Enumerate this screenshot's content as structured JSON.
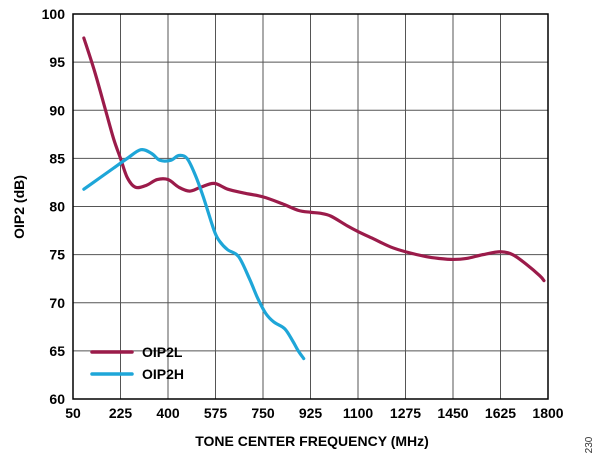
{
  "chart_data": {
    "type": "line",
    "title": "",
    "xlabel": "TONE CENTER FREQUENCY (MHz)",
    "ylabel": "OIP2 (dB)",
    "xlim": [
      50,
      1800
    ],
    "ylim": [
      60,
      100
    ],
    "x_ticks": [
      50,
      225,
      400,
      575,
      750,
      925,
      1100,
      1275,
      1450,
      1625,
      1800
    ],
    "x_tick_labels": [
      "50",
      "225",
      "400",
      "575",
      "750",
      "925",
      "1100",
      "1275",
      "1450",
      "1625",
      "1800"
    ],
    "y_ticks": [
      60,
      65,
      70,
      75,
      80,
      85,
      90,
      95,
      100
    ],
    "y_tick_labels": [
      "60",
      "65",
      "70",
      "75",
      "80",
      "85",
      "90",
      "95",
      "100"
    ],
    "grid": true,
    "legend_position": "bottom-left",
    "series": [
      {
        "name": "OIP2L",
        "color": "#9b1b4a",
        "points": [
          [
            90,
            97.5
          ],
          [
            130,
            94
          ],
          [
            170,
            90
          ],
          [
            200,
            87
          ],
          [
            225,
            85
          ],
          [
            250,
            83
          ],
          [
            280,
            82
          ],
          [
            320,
            82.2
          ],
          [
            360,
            82.8
          ],
          [
            400,
            82.8
          ],
          [
            440,
            82
          ],
          [
            480,
            81.6
          ],
          [
            520,
            82
          ],
          [
            570,
            82.4
          ],
          [
            620,
            81.8
          ],
          [
            680,
            81.4
          ],
          [
            750,
            81
          ],
          [
            820,
            80.3
          ],
          [
            880,
            79.6
          ],
          [
            925,
            79.4
          ],
          [
            960,
            79.3
          ],
          [
            1000,
            79
          ],
          [
            1060,
            78
          ],
          [
            1100,
            77.4
          ],
          [
            1160,
            76.6
          ],
          [
            1220,
            75.8
          ],
          [
            1275,
            75.3
          ],
          [
            1350,
            74.8
          ],
          [
            1400,
            74.6
          ],
          [
            1450,
            74.5
          ],
          [
            1500,
            74.6
          ],
          [
            1560,
            75
          ],
          [
            1625,
            75.3
          ],
          [
            1670,
            75
          ],
          [
            1720,
            74
          ],
          [
            1770,
            72.8
          ],
          [
            1785,
            72.3
          ]
        ]
      },
      {
        "name": "OIP2H",
        "color": "#1ea6d8",
        "points": [
          [
            90,
            81.8
          ],
          [
            150,
            83
          ],
          [
            200,
            84
          ],
          [
            250,
            85
          ],
          [
            300,
            85.9
          ],
          [
            340,
            85.5
          ],
          [
            370,
            84.8
          ],
          [
            410,
            84.8
          ],
          [
            440,
            85.3
          ],
          [
            470,
            85
          ],
          [
            500,
            83.3
          ],
          [
            530,
            81
          ],
          [
            570,
            77.5
          ],
          [
            590,
            76.4
          ],
          [
            620,
            75.5
          ],
          [
            660,
            74.8
          ],
          [
            700,
            72.5
          ],
          [
            730,
            70.5
          ],
          [
            760,
            68.9
          ],
          [
            790,
            68
          ],
          [
            830,
            67.3
          ],
          [
            860,
            66
          ],
          [
            880,
            65
          ],
          [
            900,
            64.2
          ]
        ]
      }
    ]
  },
  "figure_id": "230"
}
